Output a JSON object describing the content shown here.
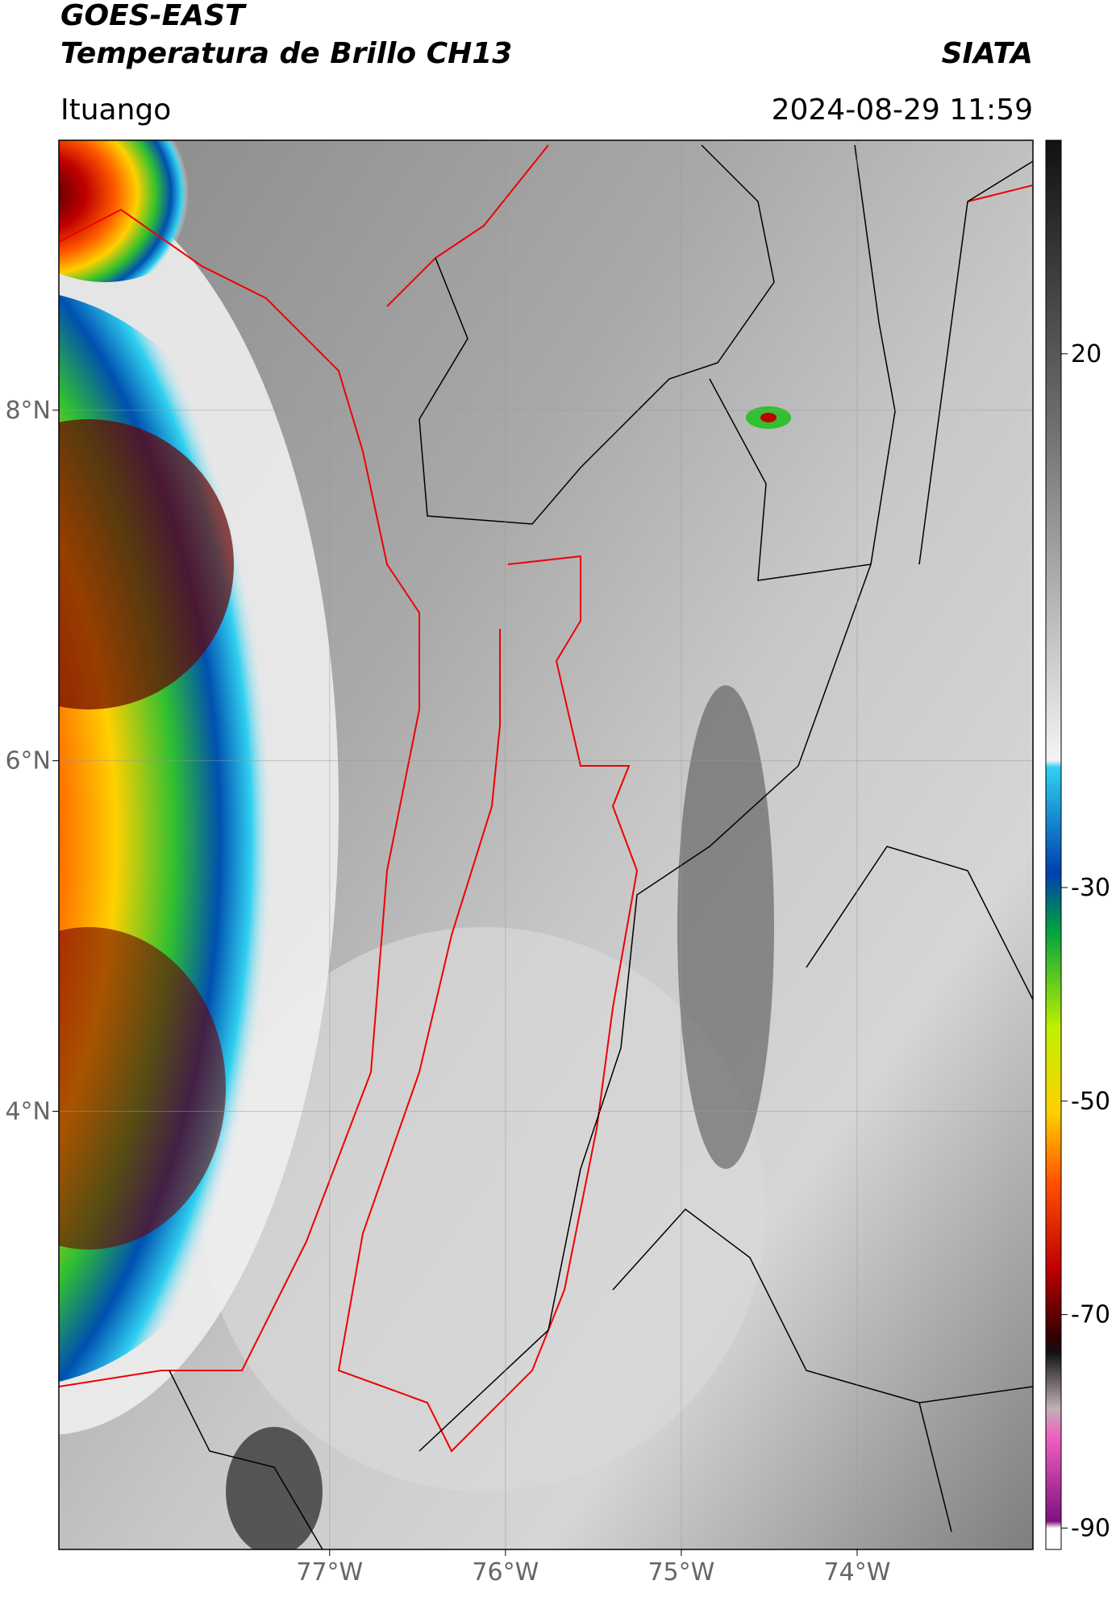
{
  "header": {
    "title": "GOES-EAST",
    "subtitle": "Temperatura de Brillo CH13",
    "source": "SIATA",
    "location": "Ituango",
    "datetime": "2024-08-29 11:59"
  },
  "map": {
    "lon_range": [
      -78.54,
      -73.0
    ],
    "lat_range": [
      1.5,
      9.54
    ],
    "lon_ticks": [
      {
        "value": -77,
        "label": "77°W"
      },
      {
        "value": -76,
        "label": "76°W"
      },
      {
        "value": -75,
        "label": "75°W"
      },
      {
        "value": -74,
        "label": "74°W"
      }
    ],
    "lat_ticks": [
      {
        "value": 8,
        "label": "8°N"
      },
      {
        "value": 6,
        "label": "6°N"
      },
      {
        "value": 4,
        "label": "4°N"
      }
    ],
    "grid": true
  },
  "colorbar": {
    "range": [
      -92,
      40
    ],
    "ticks": [
      20,
      -30,
      -50,
      -70,
      -90
    ]
  }
}
